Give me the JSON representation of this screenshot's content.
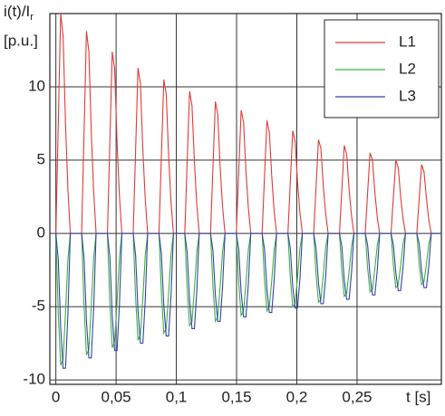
{
  "chart_data": {
    "type": "line",
    "ylabel": "i(t)/I",
    "ylabel_subscript": "r",
    "ylabel_unit": "[p.u.]",
    "xlabel": "t [s]",
    "x": [
      0,
      0.002,
      0.004,
      0.006,
      0.008,
      0.01,
      0.012,
      0.0214,
      0.0234,
      0.0254,
      0.0274,
      0.0294,
      0.0314,
      0.0334,
      0.0428,
      0.0448,
      0.0468,
      0.0488,
      0.0508,
      0.0528,
      0.0548,
      0.0642,
      0.0662,
      0.0682,
      0.0702,
      0.0722,
      0.0742,
      0.0762,
      0.0856,
      0.0876,
      0.0896,
      0.0916,
      0.0936,
      0.0956,
      0.0976,
      0.107,
      0.109,
      0.111,
      0.113,
      0.115,
      0.117,
      0.119,
      0.1284,
      0.1304,
      0.1324,
      0.1344,
      0.1364,
      0.1384,
      0.1404,
      0.1498,
      0.1518,
      0.1538,
      0.1558,
      0.1578,
      0.1598,
      0.1618,
      0.1712,
      0.1732,
      0.1752,
      0.1772,
      0.1792,
      0.1812,
      0.1832,
      0.1926,
      0.1946,
      0.1966,
      0.1986,
      0.2006,
      0.2026,
      0.2046,
      0.214,
      0.216,
      0.218,
      0.22,
      0.222,
      0.224,
      0.226,
      0.2354,
      0.2374,
      0.2394,
      0.2414,
      0.2434,
      0.2454,
      0.2474,
      0.2568,
      0.2588,
      0.2608,
      0.2628,
      0.2648,
      0.2668,
      0.2688,
      0.2782,
      0.2802,
      0.2822,
      0.2842,
      0.2862,
      0.2882,
      0.2902,
      0.2996,
      0.3016,
      0.3036,
      0.3056,
      0.3076,
      0.3096,
      0.3116,
      0.32
    ],
    "series": [
      {
        "name": "L1",
        "color": "#e03a3a",
        "values": [
          0,
          7.5,
          15,
          13.5,
          7.5,
          3,
          0,
          0,
          6.9,
          13.8,
          12.4,
          6.9,
          2.8,
          0,
          0,
          6.2,
          12.4,
          11.2,
          6.2,
          2.5,
          0,
          0,
          5.7,
          11.3,
          10.2,
          5.7,
          2.3,
          0,
          0,
          5.3,
          10.5,
          9.5,
          5.3,
          2.1,
          0,
          0,
          4.9,
          9.7,
          8.7,
          4.9,
          1.9,
          0,
          0,
          4.5,
          9,
          8.1,
          4.5,
          1.8,
          0,
          0,
          4.2,
          8.4,
          7.6,
          4.2,
          1.7,
          0,
          0,
          3.9,
          7.7,
          6.9,
          3.9,
          1.5,
          0,
          0,
          3.5,
          7,
          6.3,
          3.5,
          1.4,
          0,
          0,
          3.2,
          6.4,
          5.8,
          3.2,
          1.3,
          0,
          0,
          3,
          6,
          5.4,
          3,
          1.2,
          0,
          0,
          2.8,
          5.5,
          5,
          2.8,
          1.1,
          0,
          0,
          2.5,
          5,
          4.5,
          2.5,
          1,
          0,
          0,
          2.4,
          4.7,
          4.2,
          2.4,
          0.9,
          0,
          0
        ]
      },
      {
        "name": "L2",
        "color": "#3cb043",
        "values": [
          0,
          -5.4,
          -9,
          -8.6,
          -5.4,
          -1.8,
          0,
          0,
          -5,
          -8.3,
          -7.9,
          -5,
          -1.7,
          0,
          0,
          -4.7,
          -7.8,
          -7.4,
          -4.7,
          -1.6,
          0,
          0,
          -4.4,
          -7.3,
          -6.9,
          -4.4,
          -1.5,
          0,
          0,
          -4.1,
          -6.8,
          -6.5,
          -4.1,
          -1.4,
          0,
          0,
          -3.8,
          -6.3,
          -6,
          -3.8,
          -1.3,
          0,
          0,
          -3.6,
          -6,
          -5.7,
          -3.6,
          -1.2,
          0,
          0,
          -3.4,
          -5.6,
          -5.3,
          -3.4,
          -1.1,
          0,
          0,
          -3.2,
          -5.3,
          -5,
          -3.2,
          -1.1,
          0,
          0,
          -3,
          -5,
          -4.8,
          -3,
          -1,
          0,
          0,
          -2.8,
          -4.7,
          -4.5,
          -2.8,
          -0.9,
          0,
          0,
          -2.6,
          -4.3,
          -4.1,
          -2.6,
          -0.9,
          0,
          0,
          -2.4,
          -4,
          -3.8,
          -2.4,
          -0.8,
          0,
          0,
          -2.2,
          -3.7,
          -3.5,
          -2.2,
          -0.7,
          0,
          0,
          -2.1,
          -3.5,
          -3.3,
          -2.1,
          -0.7,
          0,
          0
        ]
      },
      {
        "name": "L3",
        "color": "#3344a8",
        "values": [
          0,
          -1.8,
          -6.4,
          -9.2,
          -9.2,
          -5.5,
          0,
          0,
          -1.7,
          -6,
          -8.5,
          -8.5,
          -5.1,
          0,
          0,
          -1.6,
          -5.6,
          -8,
          -8,
          -4.8,
          0,
          0,
          -1.5,
          -5.3,
          -7.5,
          -7.5,
          -4.5,
          0,
          0,
          -1.4,
          -4.9,
          -7,
          -7,
          -4.2,
          0,
          0,
          -1.3,
          -4.6,
          -6.5,
          -6.5,
          -3.9,
          0,
          0,
          -1.2,
          -4.2,
          -6,
          -6,
          -3.6,
          0,
          0,
          -1.1,
          -4,
          -5.7,
          -5.7,
          -3.4,
          0,
          0,
          -1.1,
          -3.8,
          -5.4,
          -5.4,
          -3.2,
          0,
          0,
          -1,
          -3.6,
          -5.1,
          -5.1,
          -3.1,
          0,
          0,
          -1,
          -3.4,
          -4.8,
          -4.8,
          -2.9,
          0,
          0,
          -0.9,
          -3.2,
          -4.5,
          -4.5,
          -2.7,
          0,
          0,
          -0.8,
          -2.9,
          -4.2,
          -4.2,
          -2.5,
          0,
          0,
          -0.8,
          -2.7,
          -3.9,
          -3.9,
          -2.3,
          0,
          0,
          -0.7,
          -2.6,
          -3.7,
          -3.7,
          -2.2,
          0,
          0
        ]
      }
    ],
    "xlim": [
      -0.005,
      0.32
    ],
    "xticks": [
      0,
      {
        "value": 0.05,
        "label": "0,05"
      },
      {
        "value": 0.1,
        "label": "0,1"
      },
      {
        "value": 0.15,
        "label": "0,15"
      },
      {
        "value": 0.2,
        "label": "0,2"
      },
      {
        "value": 0.25,
        "label": "0,25"
      }
    ],
    "ylim": [
      -10.3,
      15
    ],
    "yticks": [
      -10,
      -5,
      0,
      5,
      10
    ],
    "grid": true,
    "legend": "upper right"
  }
}
